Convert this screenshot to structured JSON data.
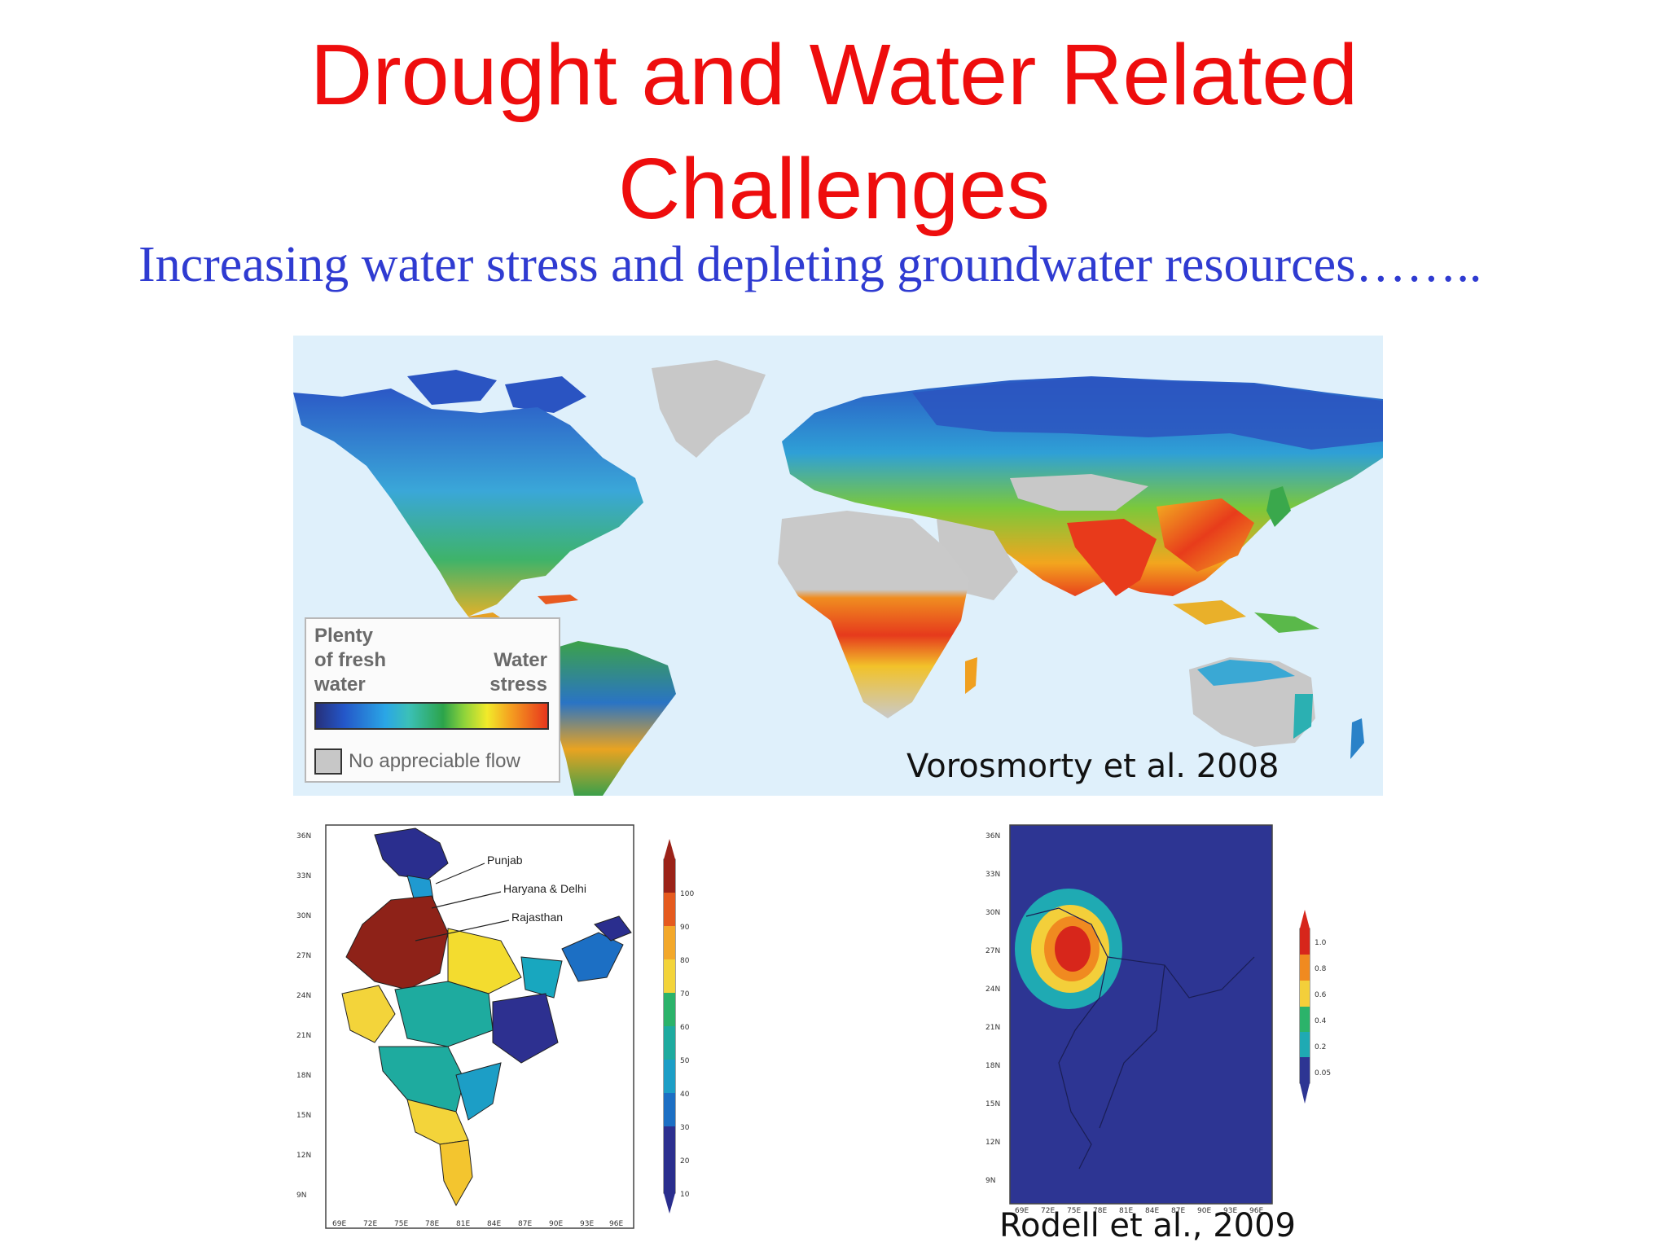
{
  "slide": {
    "title_line1": "Drought and Water Related",
    "title_line2": "Challenges",
    "subtitle": "Increasing water stress and depleting groundwater resources……..",
    "colors": {
      "title": "#ee0d0d",
      "subtitle": "#2f3bd1"
    }
  },
  "world_map": {
    "legend": {
      "left_label": [
        "Plenty",
        "of fresh",
        "water"
      ],
      "right_label": [
        "Water",
        "stress"
      ],
      "no_flow_label": "No appreciable flow"
    },
    "citation": "Vorosmorty et al. 2008"
  },
  "india_map": {
    "labels": [
      "Punjab",
      "Haryana & Delhi",
      "Rajasthan"
    ],
    "lat_ticks": [
      "36N",
      "33N",
      "30N",
      "27N",
      "24N",
      "21N",
      "18N",
      "15N",
      "12N",
      "9N"
    ],
    "lon_ticks": [
      "69E",
      "72E",
      "75E",
      "78E",
      "81E",
      "84E",
      "87E",
      "90E",
      "93E",
      "96E"
    ],
    "scale_ticks": [
      "100",
      "90",
      "80",
      "70",
      "60",
      "50",
      "40",
      "30",
      "20",
      "10"
    ]
  },
  "groundwater_map": {
    "citation": "Rodell et al., 2009",
    "lat_ticks": [
      "36N",
      "33N",
      "30N",
      "27N",
      "24N",
      "21N",
      "18N",
      "15N",
      "12N",
      "9N"
    ],
    "lon_ticks": [
      "69E",
      "72E",
      "75E",
      "78E",
      "81E",
      "84E",
      "87E",
      "90E",
      "93E",
      "96E"
    ],
    "scale_ticks": [
      "1.0",
      "0.8",
      "0.6",
      "0.4",
      "0.2",
      "0.05"
    ]
  }
}
